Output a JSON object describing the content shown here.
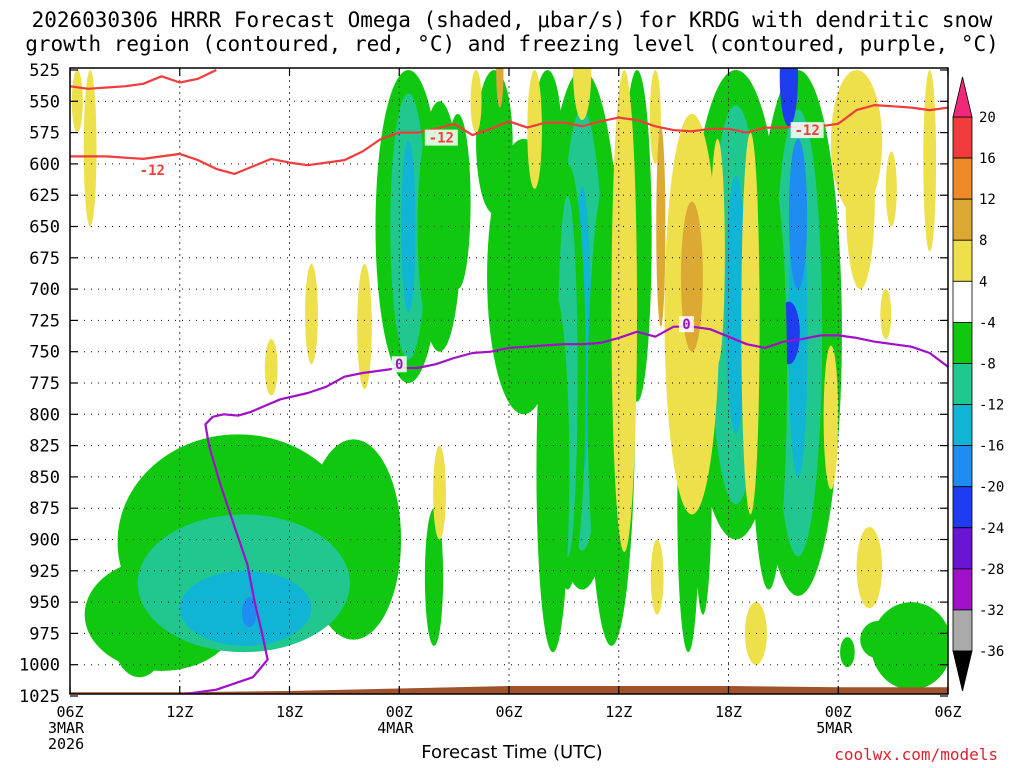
{
  "title_line1": "2026030306 HRRR Forecast Omega (shaded, μbar/s) for KRDG with dendritic snow",
  "title_line2": "growth region (contoured, red, °C) and freezing level (contoured, purple, °C)",
  "xlabel": "Forecast Time (UTC)",
  "credit": "coolwx.com/models",
  "chart_data": {
    "type": "heatmap",
    "title": "2026030306 HRRR Forecast Omega (shaded, μbar/s) for KRDG with dendritic snow growth region (contoured, red, °C) and freezing level (contoured, purple, °C)",
    "xlabel": "Forecast Time (UTC)",
    "ylabel": "",
    "x_ticks": [
      {
        "hour": 0,
        "label": "06Z",
        "sub": [
          "3MAR",
          "2026"
        ]
      },
      {
        "hour": 6,
        "label": "12Z"
      },
      {
        "hour": 12,
        "label": "18Z"
      },
      {
        "hour": 18,
        "label": "00Z",
        "sub": [
          "4MAR"
        ]
      },
      {
        "hour": 24,
        "label": "06Z"
      },
      {
        "hour": 30,
        "label": "12Z"
      },
      {
        "hour": 36,
        "label": "18Z"
      },
      {
        "hour": 42,
        "label": "00Z",
        "sub": [
          "5MAR"
        ]
      },
      {
        "hour": 48,
        "label": "06Z"
      }
    ],
    "xlim": [
      0,
      48
    ],
    "y_levels": [
      525,
      550,
      575,
      600,
      625,
      650,
      675,
      700,
      725,
      750,
      775,
      800,
      825,
      850,
      875,
      900,
      925,
      950,
      975,
      1000,
      1025
    ],
    "ylim": [
      525,
      1025
    ],
    "y_reversed": true,
    "grid": true,
    "colorbar": {
      "labels": [
        "20",
        "16",
        "12",
        "8",
        "4",
        "-4",
        "-8",
        "-12",
        "-16",
        "-20",
        "-24",
        "-28",
        "-32",
        "-36"
      ],
      "bins": [
        {
          "from": 16,
          "to": 20,
          "color": "#f03c3c"
        },
        {
          "from": 12,
          "to": 16,
          "color": "#ee8a28"
        },
        {
          "from": 8,
          "to": 12,
          "color": "#dcaa32"
        },
        {
          "from": 4,
          "to": 8,
          "color": "#eee04a"
        },
        {
          "from": -4,
          "to": 4,
          "color": "#ffffff"
        },
        {
          "from": -8,
          "to": -4,
          "color": "#10c810"
        },
        {
          "from": -12,
          "to": -8,
          "color": "#20c890"
        },
        {
          "from": -16,
          "to": -12,
          "color": "#10b4d4"
        },
        {
          "from": -20,
          "to": -16,
          "color": "#1e8cf0"
        },
        {
          "from": -24,
          "to": -20,
          "color": "#1e3cf0"
        },
        {
          "from": -28,
          "to": -24,
          "color": "#6a14d4"
        },
        {
          "from": -32,
          "to": -28,
          "color": "#a010c8"
        },
        {
          "from": -36,
          "to": -32,
          "color": "#aaaaaa"
        }
      ],
      "top_arrow_color": "#f02878",
      "bottom_arrow_color": "#000000"
    },
    "ground_color": "#a0522d",
    "contour_dgz_color": "#f03c3c",
    "contour_freezing_color": "#a010c8",
    "series": [
      {
        "name": "-12",
        "labels": [
          {
            "x": 4.5,
            "y": 605,
            "text": "-12"
          },
          {
            "x": 20.3,
            "y": 579,
            "text": "-12"
          },
          {
            "x": 40.3,
            "y": 573,
            "text": "-12"
          }
        ],
        "segments": [
          [
            [
              0,
              594
            ],
            [
              2,
              594
            ],
            [
              4,
              596
            ],
            [
              6,
              592
            ],
            [
              7,
              597
            ],
            [
              8,
              604
            ],
            [
              9,
              608
            ],
            [
              10,
              602
            ],
            [
              11,
              596
            ],
            [
              12,
              599
            ],
            [
              13,
              601
            ],
            [
              15,
              597
            ],
            [
              16,
              590
            ],
            [
              17,
              580
            ],
            [
              18,
              575
            ],
            [
              19,
              575
            ],
            [
              20,
              572
            ],
            [
              21,
              568
            ],
            [
              22,
              577
            ],
            [
              23,
              572
            ],
            [
              24,
              566
            ],
            [
              25,
              571
            ],
            [
              26,
              567
            ],
            [
              27,
              567
            ],
            [
              28,
              570
            ],
            [
              29,
              566
            ],
            [
              30,
              563
            ],
            [
              31,
              565
            ],
            [
              32,
              570
            ],
            [
              33,
              573
            ],
            [
              34,
              574
            ],
            [
              35,
              572
            ],
            [
              36,
              572
            ],
            [
              37,
              575
            ],
            [
              38,
              571
            ],
            [
              39,
              571
            ],
            [
              40,
              570
            ],
            [
              41,
              570
            ],
            [
              42,
              568
            ],
            [
              43,
              557
            ],
            [
              44,
              553
            ],
            [
              45,
              554
            ],
            [
              46,
              555
            ],
            [
              47,
              557
            ],
            [
              48,
              555
            ]
          ],
          [
            [
              0,
              538
            ],
            [
              1,
              540
            ],
            [
              2,
              539
            ],
            [
              3,
              538
            ],
            [
              4,
              536
            ],
            [
              5,
              530
            ],
            [
              6,
              535
            ],
            [
              7,
              532
            ],
            [
              8,
              525
            ]
          ]
        ]
      },
      {
        "name": "0",
        "labels": [
          {
            "x": 18.0,
            "y": 760,
            "text": "0"
          },
          {
            "x": 33.7,
            "y": 728,
            "text": "0"
          }
        ],
        "segments": [
          [
            [
              3,
              1025
            ],
            [
              6,
              1024
            ],
            [
              8,
              1020
            ],
            [
              10,
              1010
            ],
            [
              10.8,
              996
            ],
            [
              10.5,
              975
            ],
            [
              10.1,
              950
            ],
            [
              9.7,
              920
            ],
            [
              9.0,
              890
            ],
            [
              8.2,
              855
            ],
            [
              7.6,
              825
            ],
            [
              7.4,
              808
            ],
            [
              7.8,
              802
            ],
            [
              8.4,
              800
            ],
            [
              9.2,
              801
            ],
            [
              9.9,
              798
            ],
            [
              10.7,
              793
            ],
            [
              11.5,
              788
            ],
            [
              13,
              783
            ],
            [
              14,
              778
            ],
            [
              15,
              770
            ],
            [
              16,
              767
            ],
            [
              17,
              765
            ],
            [
              18,
              763
            ],
            [
              19,
              763
            ],
            [
              20,
              760
            ],
            [
              21,
              755
            ],
            [
              22,
              751
            ],
            [
              23,
              750
            ],
            [
              24,
              747
            ],
            [
              25,
              746
            ],
            [
              26,
              745
            ],
            [
              27,
              744
            ],
            [
              28,
              744
            ],
            [
              29,
              743
            ],
            [
              30,
              739
            ],
            [
              31,
              734
            ],
            [
              32,
              738
            ],
            [
              33,
              730
            ],
            [
              34,
              730
            ],
            [
              35,
              732
            ],
            [
              36,
              738
            ],
            [
              37,
              744
            ],
            [
              38,
              747
            ],
            [
              39,
              742
            ],
            [
              40,
              740
            ],
            [
              41,
              737
            ],
            [
              42,
              737
            ],
            [
              43,
              739
            ],
            [
              44,
              742
            ],
            [
              45,
              744
            ],
            [
              46,
              746
            ],
            [
              47,
              751
            ],
            [
              48,
              762
            ]
          ]
        ]
      }
    ]
  }
}
